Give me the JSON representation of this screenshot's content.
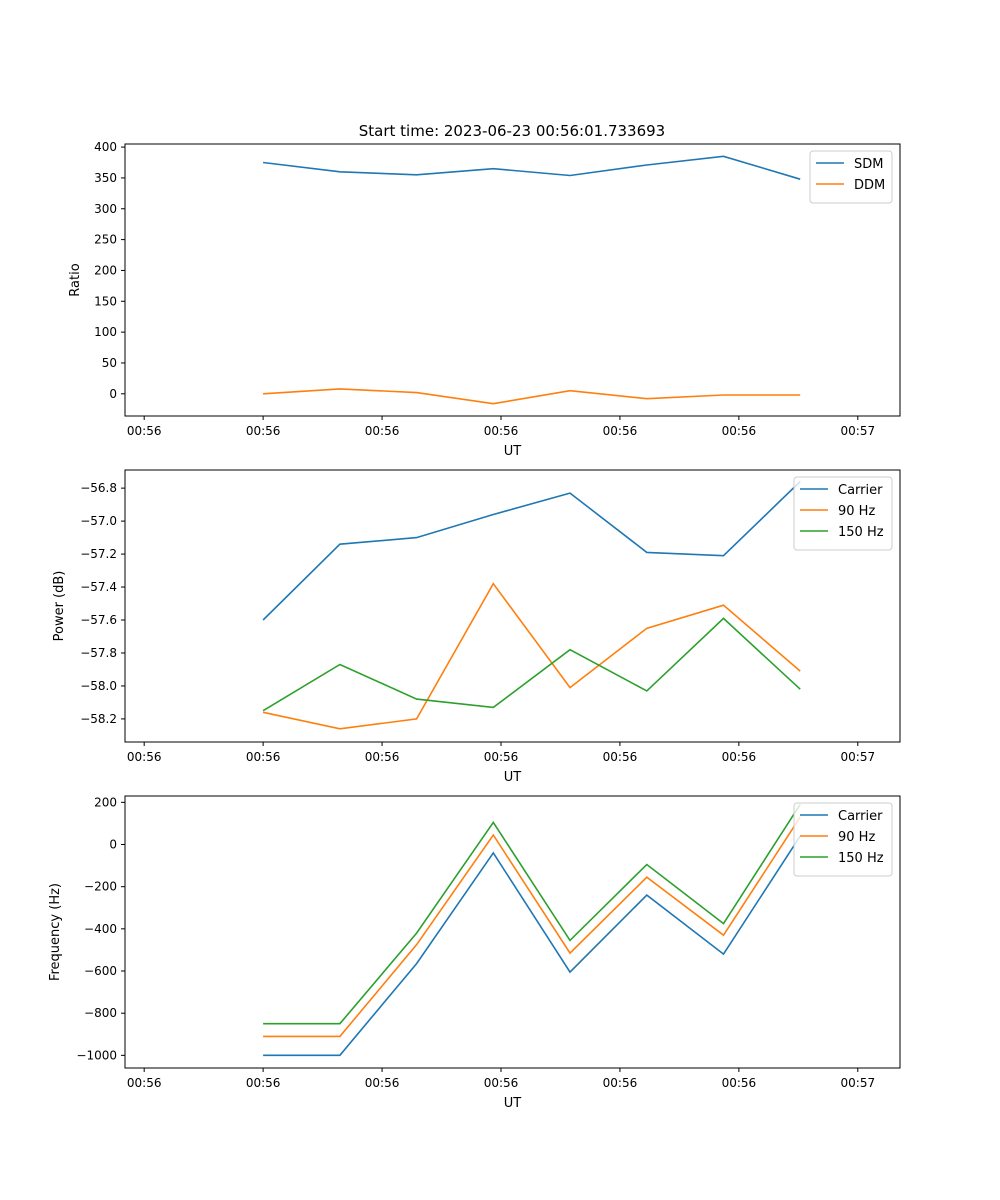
{
  "figure": {
    "suptitle": "Start time: 2023-06-23 00:56:01.733693"
  },
  "colors": {
    "blue": "#1f77b4",
    "orange": "#ff7f0e",
    "green": "#2ca02c"
  },
  "chart_data": [
    {
      "type": "line",
      "xlabel": "UT",
      "ylabel": "Ratio",
      "xticks": [
        "00:56",
        "00:56",
        "00:56",
        "00:56",
        "00:56",
        "00:56",
        "00:57"
      ],
      "yticks": [
        "0",
        "50",
        "100",
        "150",
        "200",
        "250",
        "300",
        "350",
        "400"
      ],
      "ytick_values": [
        0,
        50,
        100,
        150,
        200,
        250,
        300,
        350,
        400
      ],
      "ylim": [
        -36,
        405
      ],
      "x": [
        1,
        2,
        3,
        4,
        5,
        6,
        7,
        8
      ],
      "xlim": [
        -0.8,
        9.3
      ],
      "series": [
        {
          "name": "SDM",
          "color": "#1f77b4",
          "values": [
            375,
            360,
            355,
            365,
            354,
            371,
            385,
            348
          ]
        },
        {
          "name": "DDM",
          "color": "#ff7f0e",
          "values": [
            0,
            8,
            2,
            -16,
            5,
            -8,
            -2,
            -2
          ]
        }
      ],
      "legend": "top-right"
    },
    {
      "type": "line",
      "xlabel": "UT",
      "ylabel": "Power (dB)",
      "xticks": [
        "00:56",
        "00:56",
        "00:56",
        "00:56",
        "00:56",
        "00:56",
        "00:57"
      ],
      "yticks": [
        "−58.2",
        "−58.0",
        "−57.8",
        "−57.6",
        "−57.4",
        "−57.2",
        "−57.0",
        "−56.8"
      ],
      "ytick_values": [
        -58.2,
        -58.0,
        -57.8,
        -57.6,
        -57.4,
        -57.2,
        -57.0,
        -56.8
      ],
      "ylim": [
        -58.34,
        -56.69
      ],
      "x": [
        1,
        2,
        3,
        4,
        5,
        6,
        7,
        8
      ],
      "xlim": [
        -0.8,
        9.3
      ],
      "series": [
        {
          "name": "Carrier",
          "color": "#1f77b4",
          "values": [
            -57.6,
            -57.14,
            -57.1,
            -56.96,
            -56.83,
            -57.19,
            -57.21,
            -56.76
          ]
        },
        {
          "name": "90 Hz",
          "color": "#ff7f0e",
          "values": [
            -58.16,
            -58.26,
            -58.2,
            -57.38,
            -58.01,
            -57.65,
            -57.51,
            -57.91
          ]
        },
        {
          "name": "150 Hz",
          "color": "#2ca02c",
          "values": [
            -58.15,
            -57.87,
            -58.08,
            -58.13,
            -57.78,
            -58.03,
            -57.59,
            -58.02
          ]
        }
      ],
      "legend": "top-right"
    },
    {
      "type": "line",
      "xlabel": "UT",
      "ylabel": "Frequency (Hz)",
      "xticks": [
        "00:56",
        "00:56",
        "00:56",
        "00:56",
        "00:56",
        "00:56",
        "00:57"
      ],
      "yticks": [
        "−1000",
        "−800",
        "−600",
        "−400",
        "−200",
        "0",
        "200"
      ],
      "ytick_values": [
        -1000,
        -800,
        -600,
        -400,
        -200,
        0,
        200
      ],
      "ylim": [
        -1060,
        230
      ],
      "x": [
        1,
        2,
        3,
        4,
        5,
        6,
        7,
        8
      ],
      "xlim": [
        -0.8,
        9.3
      ],
      "series": [
        {
          "name": "Carrier",
          "color": "#1f77b4",
          "values": [
            -1000,
            -1000,
            -565,
            -40,
            -605,
            -240,
            -520,
            40
          ]
        },
        {
          "name": "90 Hz",
          "color": "#ff7f0e",
          "values": [
            -910,
            -910,
            -475,
            45,
            -515,
            -155,
            -430,
            130
          ]
        },
        {
          "name": "150 Hz",
          "color": "#2ca02c",
          "values": [
            -850,
            -850,
            -420,
            105,
            -455,
            -95,
            -375,
            190
          ]
        }
      ],
      "legend": "top-right"
    }
  ]
}
